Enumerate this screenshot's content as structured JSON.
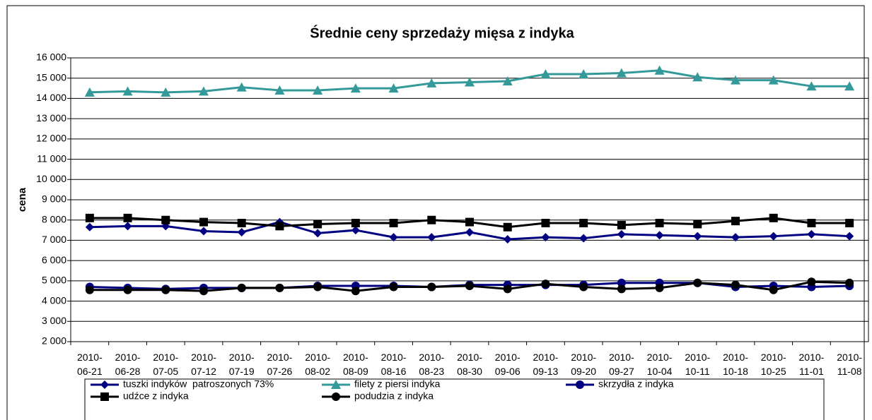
{
  "chart_data": {
    "type": "line",
    "title": "Średnie ceny sprzedaży mięsa z indyka",
    "y_label": "cena",
    "categories": [
      "2010-06-21",
      "2010-06-28",
      "2010-07-05",
      "2010-07-12",
      "2010-07-19",
      "2010-07-26",
      "2010-08-02",
      "2010-08-09",
      "2010-08-16",
      "2010-08-23",
      "2010-08-30",
      "2010-09-06",
      "2010-09-13",
      "2010-09-20",
      "2010-09-27",
      "2010-10-04",
      "2010-10-11",
      "2010-10-18",
      "2010-10-25",
      "2010-11-01",
      "2010-11-08"
    ],
    "ylim": [
      2000,
      16000
    ],
    "yticks": [
      {
        "value": 2000,
        "label": "2 000"
      },
      {
        "value": 3000,
        "label": "3 000"
      },
      {
        "value": 4000,
        "label": "4 000"
      },
      {
        "value": 5000,
        "label": "5 000"
      },
      {
        "value": 6000,
        "label": "6 000"
      },
      {
        "value": 7000,
        "label": "7 000"
      },
      {
        "value": 8000,
        "label": "8 000"
      },
      {
        "value": 9000,
        "label": "9 000"
      },
      {
        "value": 10000,
        "label": "10 000"
      },
      {
        "value": 11000,
        "label": "11 000"
      },
      {
        "value": 12000,
        "label": "12 000"
      },
      {
        "value": 13000,
        "label": "13 000"
      },
      {
        "value": 14000,
        "label": "14 000"
      },
      {
        "value": 15000,
        "label": "15 000"
      },
      {
        "value": 16000,
        "label": "16 000"
      }
    ],
    "grid": true,
    "legend": "bottom",
    "series": [
      {
        "name": "tuszki indyków  patroszonych 73%",
        "color": "#000080",
        "marker": "diamond",
        "values": [
          7650,
          7700,
          7700,
          7450,
          7400,
          7900,
          7350,
          7500,
          7150,
          7150,
          7400,
          7050,
          7150,
          7100,
          7300,
          7250,
          7200,
          7150,
          7200,
          7300,
          7200
        ]
      },
      {
        "name": "filety z piersi indyka",
        "color": "#339999",
        "marker": "triangle",
        "values": [
          14300,
          14350,
          14300,
          14350,
          14550,
          14400,
          14400,
          14500,
          14500,
          14750,
          14800,
          14850,
          15200,
          15200,
          15250,
          15380,
          15050,
          14900,
          14900,
          14600,
          14600
        ]
      },
      {
        "name": "skrzydła z indyka",
        "color": "#000080",
        "marker": "circle",
        "values": [
          4700,
          4650,
          4600,
          4650,
          4650,
          4650,
          4750,
          4750,
          4750,
          4700,
          4800,
          4800,
          4800,
          4800,
          4900,
          4900,
          4900,
          4700,
          4750,
          4700,
          4750
        ]
      },
      {
        "name": "udźce z indyka",
        "color": "#000000",
        "marker": "square",
        "values": [
          8100,
          8100,
          8000,
          7900,
          7850,
          7700,
          7800,
          7850,
          7850,
          8000,
          7900,
          7650,
          7850,
          7850,
          7750,
          7850,
          7800,
          7950,
          8100,
          7850,
          7850
        ]
      },
      {
        "name": "podudzia z indyka",
        "color": "#000000",
        "marker": "circle",
        "values": [
          4550,
          4550,
          4550,
          4500,
          4650,
          4650,
          4700,
          4500,
          4700,
          4700,
          4750,
          4600,
          4850,
          4700,
          4600,
          4650,
          4900,
          4800,
          4550,
          4950,
          4900
        ]
      }
    ]
  }
}
